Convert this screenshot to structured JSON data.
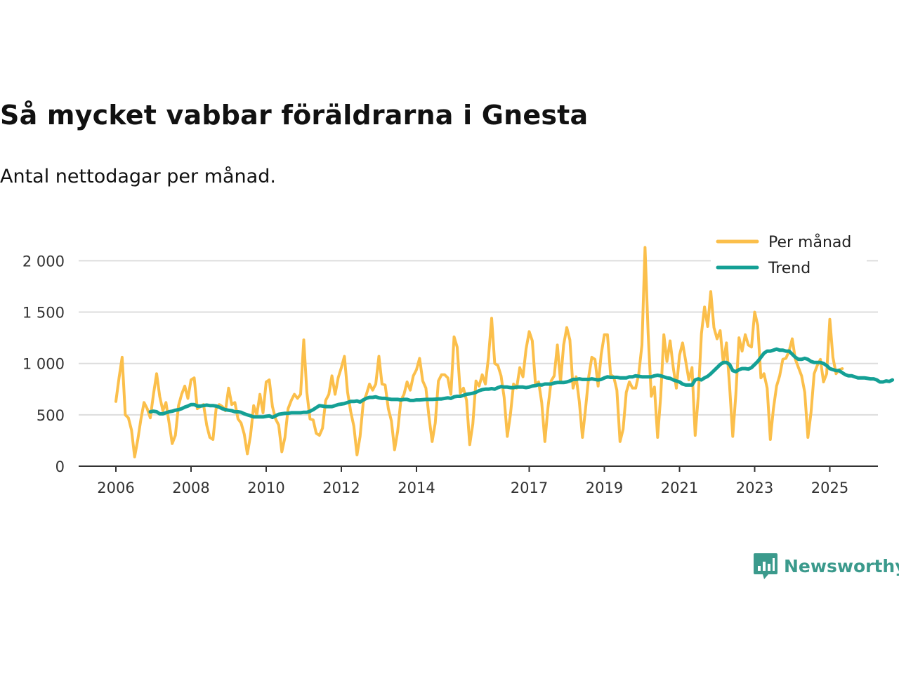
{
  "title": "Så mycket vabbar föräldrarna i Gnesta",
  "subtitle": "Antal nettodagar per månad.",
  "brand": {
    "name": "Newsworthy"
  },
  "colors": {
    "per_month": "#fbbf4b",
    "trend": "#14a095",
    "grid": "#dddddd",
    "axis": "#333333"
  },
  "chart_data": {
    "type": "line",
    "title": "Så mycket vabbar föräldrarna i Gnesta",
    "subtitle": "Antal nettodagar per månad.",
    "xlabel": "",
    "ylabel": "",
    "x_start": 2006.0,
    "x_step": 0.08333,
    "xlim": [
      2006,
      2026.2
    ],
    "ylim": [
      0,
      2150
    ],
    "yticks": [
      0,
      500,
      1000,
      1500,
      2000
    ],
    "ytick_labels": [
      "0",
      "500",
      "1 000",
      "1 500",
      "2 000"
    ],
    "xticks": [
      2006,
      2008,
      2010,
      2012,
      2014,
      2017,
      2019,
      2021,
      2023,
      2025
    ],
    "xtick_labels": [
      "2006",
      "2008",
      "2010",
      "2012",
      "2014",
      "2017",
      "2019",
      "2021",
      "2023",
      "2025"
    ],
    "legend_position": "top-right",
    "series": [
      {
        "name": "Per månad",
        "color": "#fbbf4b",
        "values": [
          630,
          860,
          1060,
          500,
          470,
          350,
          90,
          260,
          460,
          620,
          560,
          470,
          700,
          900,
          680,
          540,
          620,
          420,
          220,
          300,
          590,
          700,
          780,
          660,
          840,
          860,
          560,
          580,
          600,
          400,
          280,
          260,
          560,
          600,
          580,
          540,
          760,
          600,
          620,
          460,
          420,
          310,
          120,
          300,
          590,
          500,
          700,
          520,
          820,
          840,
          580,
          460,
          400,
          140,
          280,
          560,
          640,
          700,
          660,
          700,
          1230,
          720,
          460,
          450,
          320,
          300,
          370,
          640,
          700,
          880,
          700,
          860,
          960,
          1070,
          720,
          530,
          390,
          110,
          290,
          620,
          700,
          800,
          740,
          800,
          1070,
          800,
          790,
          560,
          440,
          160,
          340,
          640,
          700,
          820,
          740,
          880,
          940,
          1050,
          830,
          760,
          480,
          240,
          420,
          830,
          890,
          890,
          860,
          700,
          1260,
          1160,
          710,
          760,
          640,
          210,
          410,
          830,
          780,
          890,
          800,
          1060,
          1440,
          1000,
          980,
          880,
          670,
          290,
          500,
          800,
          760,
          960,
          870,
          1140,
          1310,
          1220,
          800,
          820,
          620,
          240,
          570,
          830,
          880,
          1180,
          820,
          1180,
          1350,
          1230,
          760,
          870,
          630,
          280,
          560,
          870,
          1060,
          1040,
          780,
          1090,
          1280,
          1280,
          890,
          870,
          740,
          240,
          360,
          720,
          820,
          760,
          760,
          900,
          1180,
          2130,
          1280,
          680,
          770,
          280,
          680,
          1280,
          1020,
          1220,
          960,
          760,
          1080,
          1200,
          1020,
          840,
          960,
          300,
          680,
          1290,
          1550,
          1360,
          1700,
          1350,
          1240,
          1320,
          1000,
          1200,
          780,
          290,
          700,
          1250,
          1120,
          1280,
          1180,
          1160,
          1500,
          1370,
          860,
          900,
          760,
          260,
          560,
          780,
          880,
          1040,
          1050,
          1120,
          1240,
          1040,
          960,
          880,
          720,
          280,
          520,
          900,
          980,
          1040,
          820,
          900,
          1430,
          1060,
          900,
          940,
          950
        ]
      },
      {
        "name": "Trend",
        "color": "#14a095",
        "start_index": 11,
        "values": [
          530,
          535,
          530,
          510,
          510,
          520,
          530,
          535,
          545,
          550,
          560,
          575,
          585,
          600,
          600,
          585,
          585,
          590,
          595,
          590,
          590,
          585,
          575,
          560,
          550,
          545,
          540,
          530,
          530,
          525,
          510,
          500,
          490,
          480,
          480,
          480,
          480,
          485,
          490,
          475,
          490,
          505,
          510,
          515,
          515,
          520,
          520,
          520,
          520,
          525,
          525,
          535,
          550,
          570,
          590,
          585,
          580,
          580,
          580,
          590,
          600,
          605,
          610,
          620,
          630,
          630,
          635,
          625,
          645,
          660,
          670,
          670,
          675,
          665,
          660,
          660,
          655,
          650,
          650,
          650,
          645,
          650,
          650,
          640,
          640,
          645,
          645,
          648,
          650,
          650,
          650,
          652,
          655,
          655,
          660,
          665,
          660,
          675,
          680,
          680,
          690,
          700,
          705,
          710,
          720,
          735,
          745,
          750,
          750,
          755,
          750,
          765,
          775,
          770,
          770,
          765,
          765,
          770,
          770,
          770,
          765,
          770,
          780,
          785,
          795,
          790,
          800,
          800,
          800,
          810,
          815,
          815,
          815,
          820,
          830,
          845,
          845,
          850,
          845,
          845,
          845,
          850,
          845,
          840,
          845,
          860,
          870,
          865,
          865,
          865,
          860,
          860,
          860,
          870,
          870,
          880,
          875,
          870,
          870,
          870,
          870,
          880,
          885,
          880,
          870,
          860,
          855,
          840,
          830,
          820,
          800,
          790,
          790,
          790,
          840,
          850,
          840,
          860,
          875,
          900,
          930,
          960,
          990,
          1010,
          1010,
          990,
          930,
          920,
          940,
          950,
          950,
          945,
          960,
          990,
          1020,
          1060,
          1100,
          1120,
          1120,
          1130,
          1140,
          1130,
          1130,
          1120,
          1120,
          1090,
          1060,
          1040,
          1040,
          1050,
          1040,
          1020,
          1010,
          1010,
          1010,
          1000,
          980,
          950,
          940,
          930,
          930,
          910,
          890,
          880,
          880,
          870,
          860,
          860,
          860,
          855,
          850,
          850,
          840,
          820,
          820,
          830,
          825,
          840
        ]
      }
    ]
  }
}
